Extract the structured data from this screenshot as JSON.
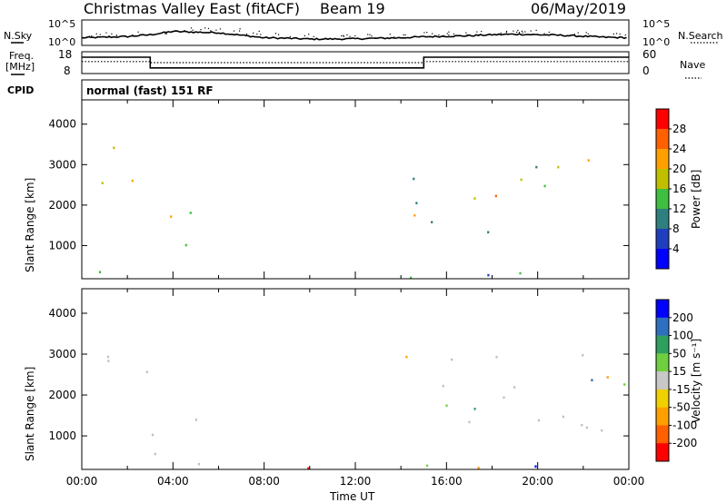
{
  "header": {
    "station": "Christmas Valley East (fitACF)",
    "beam": "Beam 19",
    "date": "06/May/2019"
  },
  "noise_panel": {
    "left_label": "N.Sky",
    "right_label": "N.Search",
    "left_top_tick": "10^5",
    "left_bottom_tick": "10^0",
    "right_top_tick": "10^5",
    "right_bottom_tick": "10^0"
  },
  "freq_panel": {
    "left_label_line1": "Freq.",
    "left_label_line2": "[MHz]",
    "right_label": "Nave",
    "left_ticks": [
      "18",
      "8"
    ],
    "right_ticks": [
      "60",
      "0"
    ]
  },
  "cpid_panel": {
    "label": "CPID",
    "mode": "normal (fast) 151 RF"
  },
  "colors": {
    "power_scale": [
      "#0000ff",
      "#1f3fbf",
      "#2f7f7f",
      "#3fbf3f",
      "#bfbf00",
      "#ffa000",
      "#ff6000",
      "#ff0000"
    ],
    "velocity_scale": [
      "#0000ff",
      "#2f6fbf",
      "#2f9f5f",
      "#6fcf3f",
      "#c8c8c8",
      "#f0d000",
      "#ffa000",
      "#ff6000",
      "#ff0000"
    ],
    "ground_scatter": "#c0c0c0"
  },
  "chart_data": [
    {
      "type": "line",
      "name": "noise",
      "x_range_hours": [
        0,
        24
      ],
      "y_scale": "log",
      "ylim": [
        1,
        100000
      ],
      "series": [
        {
          "values_level": [
            0.3,
            0.32,
            0.35,
            0.42,
            0.55,
            0.52,
            0.5,
            0.4,
            0.3,
            0.28,
            0.25,
            0.25,
            0.26,
            0.28,
            0.3,
            0.34,
            0.36,
            0.38,
            0.42,
            0.44,
            0.42,
            0.4,
            0.36,
            0.32,
            0.3
          ]
        }
      ]
    },
    {
      "type": "line",
      "name": "frequency_and_nave",
      "x_range_hours": [
        0,
        24
      ],
      "left_ylim": [
        8,
        18
      ],
      "right_ylim": [
        0,
        60
      ],
      "series": [
        {
          "segments": [
            [
              0,
              3,
              15.5
            ],
            [
              3,
              15,
              10.6
            ],
            [
              15,
              24,
              15.5
            ]
          ]
        },
        {
          "segments": [
            [
              0,
              3,
              33
            ],
            [
              3,
              15,
              30
            ],
            [
              15,
              24,
              33
            ]
          ]
        }
      ]
    },
    {
      "type": "heatmap",
      "name": "power",
      "xlabel": "",
      "ylabel": "Slant Range [km]",
      "xlim": [
        0,
        24
      ],
      "ylim": [
        180,
        4600
      ],
      "yticks": [
        "1000",
        "2000",
        "3000",
        "4000"
      ],
      "colorbar": {
        "label": "Power [dB]",
        "ticks": [
          "4",
          "8",
          "12",
          "16",
          "20",
          "24",
          "28"
        ],
        "range": [
          0,
          32
        ]
      },
      "echo_regions": [
        {
          "t0": 0.0,
          "t1": 1.8,
          "r0": 2400,
          "r1": 3600,
          "peak_db": 26
        },
        {
          "t0": 1.8,
          "t1": 3.0,
          "r0": 2300,
          "r1": 3000,
          "peak_db": 24
        },
        {
          "t0": 3.0,
          "t1": 4.8,
          "r0": 1300,
          "r1": 2400,
          "peak_db": 24
        },
        {
          "t0": 3.8,
          "t1": 5.5,
          "r0": 300,
          "r1": 1200,
          "peak_db": 20
        },
        {
          "t0": 14.0,
          "t1": 18.5,
          "r0": 1000,
          "r1": 2300,
          "peak_db": 24
        },
        {
          "t0": 14.5,
          "t1": 17.5,
          "r0": 2000,
          "r1": 2900,
          "peak_db": 18
        },
        {
          "t0": 18.0,
          "t1": 24.0,
          "r0": 2300,
          "r1": 3200,
          "peak_db": 22
        },
        {
          "t0": 0.0,
          "t1": 24.0,
          "r0": 180,
          "r1": 380,
          "peak_db": 18
        }
      ]
    },
    {
      "type": "heatmap",
      "name": "velocity",
      "xlabel": "Time UT",
      "ylabel": "Slant Range [km]",
      "xlim": [
        0,
        24
      ],
      "ylim": [
        180,
        4600
      ],
      "xticks": [
        "00:00",
        "04:00",
        "08:00",
        "12:00",
        "16:00",
        "20:00",
        "00:00"
      ],
      "yticks": [
        "1000",
        "2000",
        "3000",
        "4000"
      ],
      "colorbar": {
        "label": "Velocity [m s⁻¹]",
        "ticks": [
          "200",
          "100",
          "50",
          "15",
          "-15",
          "-50",
          "-100",
          "-200"
        ],
        "range": [
          -250,
          250
        ]
      },
      "echo_regions": [
        {
          "t0": 0.0,
          "t1": 3.0,
          "r0": 2400,
          "r1": 3600,
          "vel": 0
        },
        {
          "t0": 3.0,
          "t1": 5.5,
          "r0": 300,
          "r1": 2400,
          "vel": 0
        },
        {
          "t0": 14.0,
          "t1": 24.0,
          "r0": 1000,
          "r1": 3200,
          "vel": 0
        },
        {
          "t0": 0.0,
          "t1": 24.0,
          "r0": 180,
          "r1": 380,
          "vel": -20
        }
      ]
    }
  ]
}
